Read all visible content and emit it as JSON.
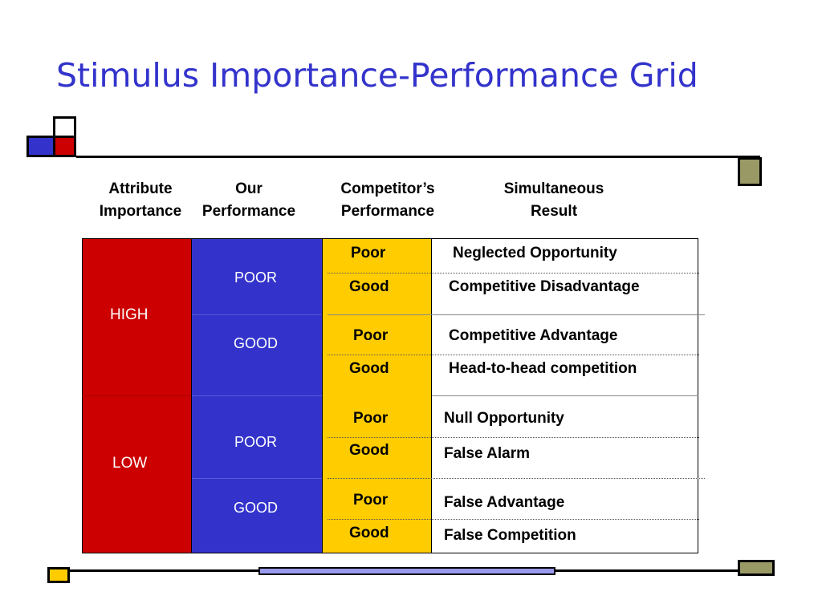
{
  "slide": {
    "title": "Stimulus Importance-Performance Grid"
  },
  "headers": {
    "attribute_importance": [
      "Attribute",
      "Importance"
    ],
    "our_performance": [
      "Our",
      "Performance"
    ],
    "competitor_performance": [
      "Competitor’s",
      "Performance"
    ],
    "simultaneous_result": [
      "Simultaneous",
      "Result"
    ]
  },
  "grid": {
    "importance": [
      "HIGH",
      "LOW"
    ],
    "our_performance": [
      "POOR",
      "GOOD",
      "POOR",
      "GOOD"
    ],
    "competitor": [
      "Poor",
      "Good",
      "Poor",
      "Good",
      "Poor",
      "Good",
      "Poor",
      "Good"
    ],
    "results": [
      "Neglected Opportunity",
      "Competitive Disadvantage",
      "Competitive Advantage",
      "Head-to-head competition",
      "Null Opportunity",
      "False Alarm",
      "False Advantage",
      "False Competition"
    ]
  },
  "colors": {
    "title": "#3333cc",
    "importance_column": "#cc0000",
    "our_performance_column": "#3333cc",
    "competitor_column": "#ffcc00",
    "deco_olive": "#999966"
  }
}
